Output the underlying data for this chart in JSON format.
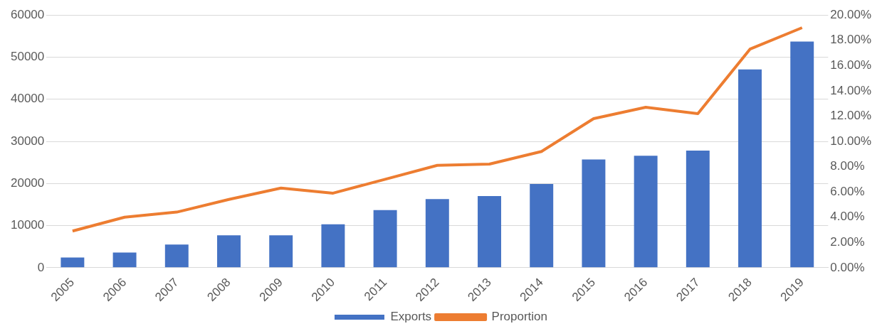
{
  "chart_data": {
    "type": "bar",
    "categories": [
      "2005",
      "2006",
      "2007",
      "2008",
      "2009",
      "2010",
      "2011",
      "2012",
      "2013",
      "2014",
      "2015",
      "2016",
      "2017",
      "2018",
      "2019"
    ],
    "series": [
      {
        "name": "Exports",
        "color": "#4472c4",
        "values": [
          2400,
          3600,
          5500,
          7700,
          7700,
          10300,
          13700,
          16300,
          17000,
          19900,
          25700,
          26600,
          27800,
          47100,
          53700
        ]
      },
      {
        "name": "Proportion",
        "type": "line",
        "axis": "y2",
        "color": "#ed7d31",
        "values": [
          2.9,
          4.0,
          4.4,
          5.4,
          6.3,
          5.9,
          7.0,
          8.1,
          8.2,
          9.2,
          11.8,
          12.7,
          12.2,
          17.3,
          19.0
        ]
      }
    ],
    "ylim": [
      0,
      60000
    ],
    "yticks": [
      0,
      10000,
      20000,
      30000,
      40000,
      50000,
      60000
    ],
    "y2lim": [
      0,
      20
    ],
    "y2ticks": [
      {
        "value": 0,
        "label": "0.00%"
      },
      {
        "value": 2,
        "label": "2.00%"
      },
      {
        "value": 4,
        "label": "4.00%"
      },
      {
        "value": 6,
        "label": "6.00%"
      },
      {
        "value": 8,
        "label": "8.00%"
      },
      {
        "value": 10,
        "label": "10.00%"
      },
      {
        "value": 12,
        "label": "12.00%"
      },
      {
        "value": 14,
        "label": "14.00%"
      },
      {
        "value": 16,
        "label": "16.00%"
      },
      {
        "value": 18,
        "label": "18.00%"
      },
      {
        "value": 20,
        "label": "20.00%"
      }
    ],
    "grid": "y",
    "legend": "bottom",
    "marker": "none",
    "line_style": "solid"
  }
}
